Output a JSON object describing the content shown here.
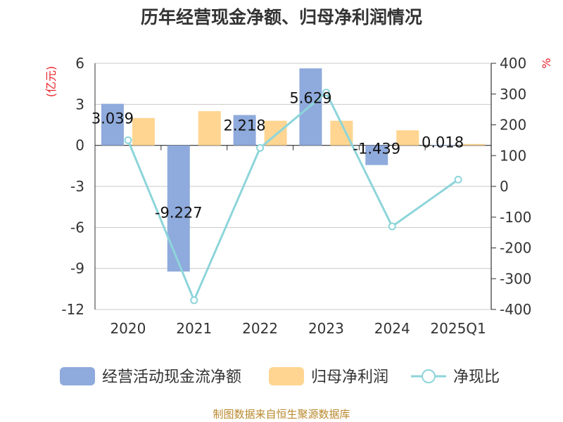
{
  "chart_data": {
    "type": "bar",
    "title": "历年经营现金净额、归母净利润情况",
    "categories": [
      "2020",
      "2021",
      "2022",
      "2023",
      "2024",
      "2025Q1"
    ],
    "series": [
      {
        "name": "经营活动现金流净额",
        "type": "bar",
        "axis": "left",
        "color": "#8faadc",
        "values": [
          3.039,
          -9.227,
          2.218,
          5.629,
          -1.439,
          0.018
        ],
        "labels": [
          "3.039",
          "-9.227",
          "2.218",
          "5.629",
          "-1.439",
          "0.018"
        ]
      },
      {
        "name": "归母净利润",
        "type": "bar",
        "axis": "left",
        "color": "#ffd591",
        "values": [
          2.0,
          2.5,
          1.8,
          1.8,
          1.1,
          0.1
        ]
      },
      {
        "name": "净现比",
        "type": "line",
        "axis": "right",
        "color": "#8dd5da",
        "values": [
          150,
          -370,
          125,
          305,
          -130,
          22
        ]
      }
    ],
    "y_left": {
      "unit": "(亿元)",
      "min": -12,
      "max": 6,
      "ticks": [
        6,
        3,
        0,
        -3,
        -6,
        -9,
        -12
      ]
    },
    "y_right": {
      "unit": "%",
      "min": -400,
      "max": 400,
      "ticks": [
        400,
        300,
        200,
        100,
        0,
        -100,
        -200,
        -300,
        -400
      ]
    },
    "grid": true,
    "legend_position": "bottom"
  },
  "source": "制图数据来自恒生聚源数据库"
}
